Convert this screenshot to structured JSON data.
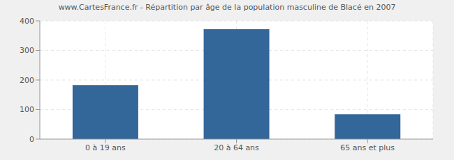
{
  "chart_data": {
    "type": "bar",
    "title": "www.CartesFrance.fr - Répartition par âge de la population masculine de Blacé en 2007",
    "categories": [
      "0 à 19 ans",
      "20 à 64 ans",
      "65 ans et plus"
    ],
    "values": [
      183,
      372,
      84
    ],
    "color": "#336699",
    "ylim": [
      0,
      400
    ],
    "yticks": [
      0,
      100,
      200,
      300,
      400
    ],
    "grid": true
  }
}
